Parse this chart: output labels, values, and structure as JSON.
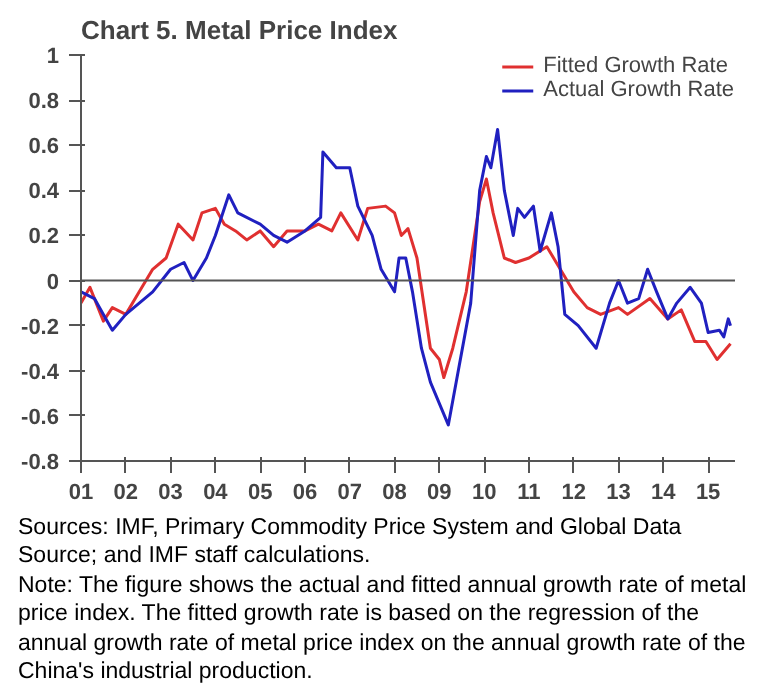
{
  "chart_data": {
    "type": "line",
    "title": "Chart 5. Metal Price Index",
    "x": [
      2001.0,
      2001.2,
      2001.5,
      2001.7,
      2002.0,
      2002.3,
      2002.6,
      2002.9,
      2003.17,
      2003.5,
      2003.7,
      2004.0,
      2004.2,
      2004.45,
      2004.7,
      2005.0,
      2005.3,
      2005.6,
      2006.0,
      2006.3,
      2006.6,
      2006.8,
      2007.18,
      2007.4,
      2007.8,
      2008.0,
      2008.15,
      2008.3,
      2008.5,
      2008.8,
      2009.0,
      2009.1,
      2009.3,
      2009.6,
      2009.9,
      2010.05,
      2010.2,
      2010.45,
      2010.7,
      2011.0,
      2011.4,
      2011.7,
      2012.0,
      2012.3,
      2012.6,
      2013.0,
      2013.2,
      2013.7,
      2014.1,
      2014.4,
      2014.7,
      2014.95,
      2015.2,
      2015.5
    ],
    "series": [
      {
        "name": "Fitted Growth Rate",
        "color": "#e03030",
        "values": [
          -0.1,
          -0.03,
          -0.18,
          -0.12,
          -0.15,
          -0.05,
          0.05,
          0.1,
          0.25,
          0.18,
          0.3,
          0.32,
          0.25,
          0.22,
          0.18,
          0.22,
          0.15,
          0.22,
          0.22,
          0.25,
          0.22,
          0.3,
          0.18,
          0.32,
          0.33,
          0.3,
          0.2,
          0.23,
          0.1,
          -0.3,
          -0.35,
          -0.43,
          -0.3,
          -0.05,
          0.35,
          0.45,
          0.3,
          0.1,
          0.08,
          0.1,
          0.15,
          0.05,
          -0.05,
          -0.12,
          -0.15,
          -0.12,
          -0.15,
          -0.08,
          -0.17,
          -0.13,
          -0.27,
          -0.27,
          -0.35,
          -0.28
        ]
      },
      {
        "name": "Actual Growth Rate",
        "color": "#2020c0",
        "x": [
          2001.0,
          2001.3,
          2001.5,
          2001.7,
          2002.0,
          2002.3,
          2002.6,
          2003.0,
          2003.3,
          2003.5,
          2003.8,
          2004.0,
          2004.3,
          2004.5,
          2005.0,
          2005.3,
          2005.6,
          2006.0,
          2006.35,
          2006.4,
          2006.7,
          2007.0,
          2007.18,
          2007.5,
          2007.7,
          2008.0,
          2008.1,
          2008.25,
          2008.4,
          2008.6,
          2008.8,
          2009.2,
          2009.7,
          2009.9,
          2010.05,
          2010.15,
          2010.3,
          2010.45,
          2010.65,
          2010.75,
          2010.9,
          2011.1,
          2011.25,
          2011.5,
          2011.65,
          2011.8,
          2012.1,
          2012.5,
          2012.8,
          2013.0,
          2013.2,
          2013.45,
          2013.65,
          2013.85,
          2014.1,
          2014.3,
          2014.6,
          2014.85,
          2015.0,
          2015.25,
          2015.35,
          2015.45,
          2015.5
        ],
        "values": [
          -0.05,
          -0.08,
          -0.15,
          -0.22,
          -0.15,
          -0.1,
          -0.05,
          0.05,
          0.08,
          0.0,
          0.1,
          0.2,
          0.38,
          0.3,
          0.25,
          0.2,
          0.17,
          0.22,
          0.28,
          0.57,
          0.5,
          0.5,
          0.33,
          0.2,
          0.05,
          -0.05,
          0.1,
          0.1,
          -0.05,
          -0.3,
          -0.45,
          -0.64,
          -0.1,
          0.4,
          0.55,
          0.5,
          0.67,
          0.4,
          0.2,
          0.32,
          0.28,
          0.33,
          0.13,
          0.3,
          0.15,
          -0.15,
          -0.2,
          -0.3,
          -0.1,
          0.0,
          -0.1,
          -0.08,
          0.05,
          -0.05,
          -0.17,
          -0.1,
          -0.03,
          -0.1,
          -0.23,
          -0.22,
          -0.25,
          -0.17,
          -0.2
        ]
      }
    ],
    "xlim": [
      2001.0,
      2015.6
    ],
    "xticks": [
      {
        "value": 2001,
        "label": "01"
      },
      {
        "value": 2002,
        "label": "02"
      },
      {
        "value": 2003,
        "label": "03"
      },
      {
        "value": 2004,
        "label": "04"
      },
      {
        "value": 2005,
        "label": "05"
      },
      {
        "value": 2006,
        "label": "06"
      },
      {
        "value": 2007,
        "label": "07"
      },
      {
        "value": 2008,
        "label": "08"
      },
      {
        "value": 2009,
        "label": "09"
      },
      {
        "value": 2010,
        "label": "10"
      },
      {
        "value": 2011,
        "label": "11"
      },
      {
        "value": 2012,
        "label": "12"
      },
      {
        "value": 2013,
        "label": "13"
      },
      {
        "value": 2014,
        "label": "14"
      },
      {
        "value": 2015,
        "label": "15"
      }
    ],
    "ylim": [
      -0.8,
      1
    ],
    "yticks": [
      -0.8,
      -0.6,
      -0.4,
      -0.2,
      0,
      0.2,
      0.4,
      0.6,
      0.8,
      1
    ],
    "ref_lines": [
      {
        "axis": "y",
        "value": 0,
        "color": "#555555"
      }
    ],
    "grid": false,
    "legend": "top right",
    "marker": "none",
    "line_style": "solid",
    "annotations": [
      "Sources: IMF, Primary Commodity Price System and Global Data Source; and IMF staff calculations.",
      "Note: The figure shows the actual and fitted annual growth rate of metal price index. The fitted growth rate is based on the regression of the annual growth rate of metal price index on the annual growth rate of the China's industrial production."
    ]
  }
}
